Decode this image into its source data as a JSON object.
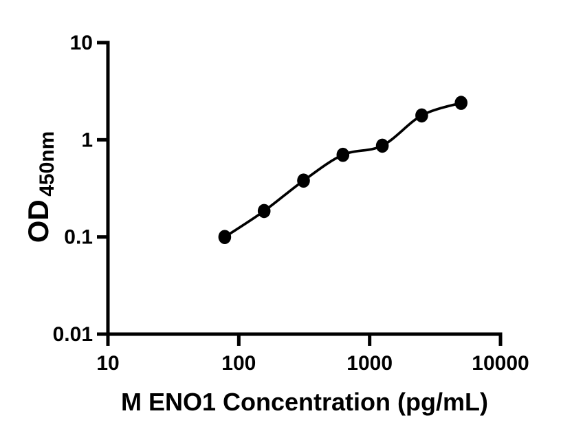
{
  "figure": {
    "background_color": "#ffffff",
    "ink_color": "#000000"
  },
  "chart_data": {
    "type": "scatter",
    "title": "",
    "xlabel": "M ENO1 Concentration (pg/mL)",
    "ylabel": "OD",
    "ylabel_subscript": "450nm",
    "x_scale": "log",
    "y_scale": "log",
    "xlim": [
      10,
      10000
    ],
    "ylim": [
      0.01,
      10
    ],
    "grid": false,
    "legend": "none",
    "x_ticks": [
      {
        "value": 10,
        "label": "10"
      },
      {
        "value": 100,
        "label": "100"
      },
      {
        "value": 1000,
        "label": "1000"
      },
      {
        "value": 10000,
        "label": "10000"
      }
    ],
    "y_ticks": [
      {
        "value": 10,
        "label": "10"
      },
      {
        "value": 1,
        "label": "1"
      },
      {
        "value": 0.1,
        "label": "0.1"
      },
      {
        "value": 0.01,
        "label": "0.01"
      }
    ],
    "series": [
      {
        "marker": "filled-circle",
        "marker_color": "#000000",
        "line_color": "#000000",
        "line_style": "smooth-fit",
        "points": [
          {
            "x": 78.125,
            "y": 0.1
          },
          {
            "x": 156.25,
            "y": 0.185
          },
          {
            "x": 312.5,
            "y": 0.38
          },
          {
            "x": 625,
            "y": 0.7
          },
          {
            "x": 1250,
            "y": 0.87
          },
          {
            "x": 2500,
            "y": 1.78
          },
          {
            "x": 5000,
            "y": 2.4
          }
        ]
      }
    ]
  }
}
